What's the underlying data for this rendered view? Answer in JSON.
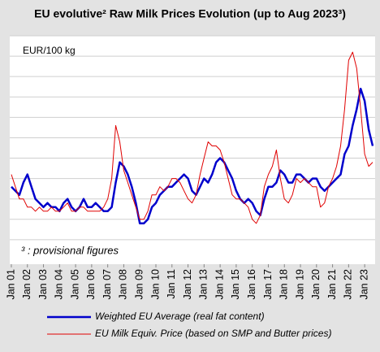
{
  "chart_data": {
    "type": "line",
    "title": "EU evolutive² Raw Milk Prices Evolution (up to Aug 2023³)",
    "y_label": "EUR/100 kg",
    "annotation": "³ : provisional figures",
    "x": [
      2001,
      2001.25,
      2001.5,
      2001.75,
      2002,
      2002.25,
      2002.5,
      2002.75,
      2003,
      2003.25,
      2003.5,
      2003.75,
      2004,
      2004.25,
      2004.5,
      2004.75,
      2005,
      2005.25,
      2005.5,
      2005.75,
      2006,
      2006.25,
      2006.5,
      2006.75,
      2007,
      2007.25,
      2007.5,
      2007.75,
      2008,
      2008.25,
      2008.5,
      2008.75,
      2009,
      2009.25,
      2009.5,
      2009.75,
      2010,
      2010.25,
      2010.5,
      2010.75,
      2011,
      2011.25,
      2011.5,
      2011.75,
      2012,
      2012.25,
      2012.5,
      2012.75,
      2013,
      2013.25,
      2013.5,
      2013.75,
      2014,
      2014.25,
      2014.5,
      2014.75,
      2015,
      2015.25,
      2015.5,
      2015.75,
      2016,
      2016.25,
      2016.5,
      2016.75,
      2017,
      2017.25,
      2017.5,
      2017.75,
      2018,
      2018.25,
      2018.5,
      2018.75,
      2019,
      2019.25,
      2019.5,
      2019.75,
      2020,
      2020.25,
      2020.5,
      2020.75,
      2021,
      2021.25,
      2021.5,
      2021.75,
      2022,
      2022.25,
      2022.5,
      2022.75,
      2023,
      2023.25,
      2023.5
    ],
    "series": [
      {
        "name": "Weighted EU Average (real fat content)",
        "color": "#0000cc",
        "width": 2.5,
        "values": [
          33,
          32,
          31,
          34,
          36,
          33,
          30,
          29,
          28,
          29,
          28,
          28,
          27,
          29,
          30,
          28,
          27,
          28,
          30,
          28,
          28,
          29,
          28,
          27,
          27,
          28,
          34,
          39,
          38,
          36,
          33,
          29,
          24,
          24,
          25,
          28,
          29,
          31,
          32,
          33,
          33,
          34,
          35,
          36,
          35,
          32,
          31,
          33,
          35,
          34,
          36,
          39,
          40,
          39,
          37,
          35,
          32,
          30,
          29,
          30,
          29,
          27,
          26,
          30,
          33,
          33,
          34,
          37,
          36,
          34,
          34,
          36,
          36,
          35,
          34,
          35,
          35,
          33,
          32,
          33,
          34,
          35,
          36,
          41,
          43,
          48,
          52,
          57,
          54,
          47,
          43
        ]
      },
      {
        "name": "EU Milk Equiv. Price (based on SMP and Butter prices)",
        "color": "#e00000",
        "width": 1,
        "values": [
          36,
          33,
          30,
          30,
          28,
          28,
          27,
          28,
          27,
          27,
          28,
          27,
          27,
          28,
          29,
          27,
          27,
          28,
          28,
          27,
          27,
          27,
          27,
          28,
          30,
          35,
          48,
          44,
          37,
          34,
          31,
          28,
          25,
          25,
          27,
          31,
          31,
          33,
          32,
          33,
          35,
          35,
          34,
          32,
          30,
          29,
          31,
          36,
          40,
          44,
          43,
          43,
          42,
          39,
          35,
          31,
          30,
          30,
          29,
          28,
          25,
          24,
          26,
          33,
          36,
          38,
          42,
          35,
          30,
          29,
          31,
          35,
          34,
          35,
          34,
          33,
          33,
          28,
          29,
          33,
          35,
          38,
          43,
          52,
          64,
          66,
          62,
          52,
          41,
          38,
          39
        ]
      }
    ],
    "xlim": [
      2000.9,
      2023.65
    ],
    "xticks": [
      {
        "value": 2001,
        "label": "Jan 01"
      },
      {
        "value": 2002,
        "label": "Jan 02"
      },
      {
        "value": 2003,
        "label": "Jan 03"
      },
      {
        "value": 2004,
        "label": "Jan 04"
      },
      {
        "value": 2005,
        "label": "Jan 05"
      },
      {
        "value": 2006,
        "label": "Jan 06"
      },
      {
        "value": 2007,
        "label": "Jan 07"
      },
      {
        "value": 2008,
        "label": "Jan 08"
      },
      {
        "value": 2009,
        "label": "Jan 09"
      },
      {
        "value": 2010,
        "label": "Jan 10"
      },
      {
        "value": 2011,
        "label": "Jan 11"
      },
      {
        "value": 2012,
        "label": "Jan 12"
      },
      {
        "value": 2013,
        "label": "Jan 13"
      },
      {
        "value": 2014,
        "label": "Jan 14"
      },
      {
        "value": 2015,
        "label": "Jan 15"
      },
      {
        "value": 2016,
        "label": "Jan 16"
      },
      {
        "value": 2017,
        "label": "Jan 17"
      },
      {
        "value": 2018,
        "label": "Jan 18"
      },
      {
        "value": 2019,
        "label": "Jan 19"
      },
      {
        "value": 2020,
        "label": "Jan 20"
      },
      {
        "value": 2021,
        "label": "Jan 21"
      },
      {
        "value": 2022,
        "label": "Jan 22"
      },
      {
        "value": 2023,
        "label": "Jan 23"
      }
    ],
    "ylim": [
      14,
      70
    ],
    "ygrid": [
      20,
      25,
      30,
      35,
      40,
      45,
      50,
      55,
      60,
      65,
      70
    ],
    "grid": true
  }
}
